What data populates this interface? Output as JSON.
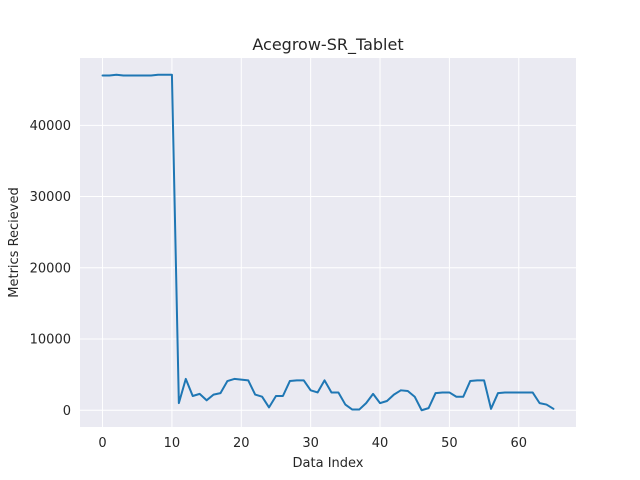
{
  "chart_data": {
    "type": "line",
    "title": "Acegrow-SR_Tablet",
    "xlabel": "Data Index",
    "ylabel": "Metrics Recieved",
    "xlim": [
      -3.25,
      68.25
    ],
    "ylim": [
      -2350,
      49450
    ],
    "xticks": [
      0,
      10,
      20,
      30,
      40,
      50,
      60
    ],
    "yticks": [
      0,
      10000,
      20000,
      30000,
      40000
    ],
    "grid": true,
    "background": "#eaeaf2",
    "series": [
      {
        "color": "#1f77b4",
        "x": [
          0,
          1,
          2,
          3,
          4,
          5,
          6,
          7,
          8,
          9,
          10,
          11,
          12,
          13,
          14,
          15,
          16,
          17,
          18,
          19,
          20,
          21,
          22,
          23,
          24,
          25,
          26,
          27,
          28,
          29,
          30,
          31,
          32,
          33,
          34,
          35,
          36,
          37,
          38,
          39,
          40,
          41,
          42,
          43,
          44,
          45,
          46,
          47,
          48,
          49,
          50,
          51,
          52,
          53,
          54,
          55,
          56,
          57,
          58,
          59,
          60,
          61,
          62,
          63,
          64,
          65
        ],
        "y": [
          47000,
          47000,
          47100,
          47000,
          47000,
          47000,
          47000,
          47000,
          47100,
          47100,
          47100,
          1000,
          4400,
          2000,
          2300,
          1400,
          2200,
          2400,
          4100,
          4400,
          4300,
          4200,
          2200,
          1900,
          400,
          2000,
          2000,
          4100,
          4200,
          4200,
          2800,
          2500,
          4200,
          2500,
          2500,
          800,
          100,
          100,
          1000,
          2300,
          1000,
          1300,
          2200,
          2800,
          2700,
          1900,
          0,
          300,
          2400,
          2500,
          2500,
          1900,
          1900,
          4100,
          4200,
          4200,
          200,
          2400,
          2500,
          2500,
          2500,
          2500,
          2500,
          1000,
          800,
          200
        ]
      }
    ]
  }
}
